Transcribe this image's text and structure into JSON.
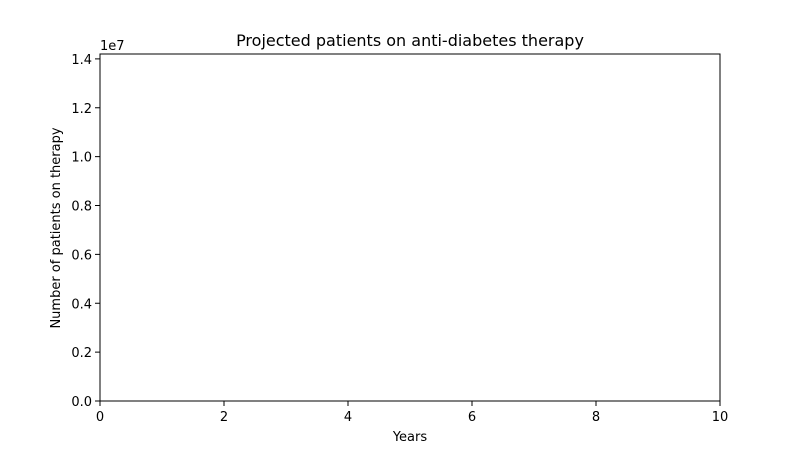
{
  "chart_data": {
    "type": "line",
    "title": "Projected patients on anti-diabetes therapy",
    "xlabel": "Years",
    "ylabel": "Number of patients on therapy",
    "y_offset_label": "1e7",
    "xlim": [
      0,
      10
    ],
    "ylim": [
      0,
      14200000
    ],
    "x_ticks": [
      0,
      2,
      4,
      6,
      8,
      10
    ],
    "x_tick_labels": [
      "0",
      "2",
      "4",
      "6",
      "8",
      "10"
    ],
    "y_ticks": [
      0,
      2000000,
      4000000,
      6000000,
      8000000,
      10000000,
      12000000,
      14000000
    ],
    "y_tick_labels": [
      "0.0",
      "0.2",
      "0.4",
      "0.6",
      "0.8",
      "1.0",
      "1.2",
      "1.4"
    ],
    "grid": false,
    "series": []
  }
}
